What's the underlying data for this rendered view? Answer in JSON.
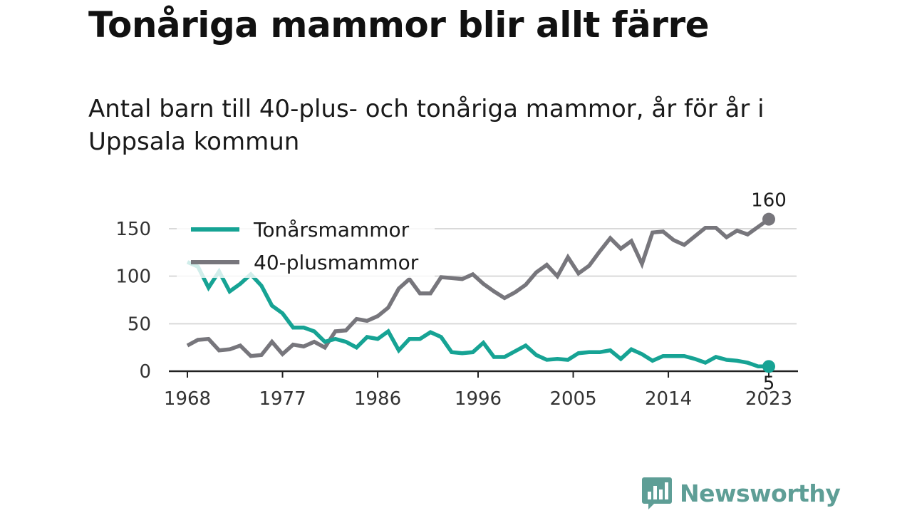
{
  "header": {
    "title": "Tonåriga mammor blir allt färre",
    "subtitle": "Antal barn till 40-plus- och tonåriga mammor, år för år i Uppsala kommun"
  },
  "brand": {
    "name": "Newsworthy",
    "icon": "bar-chart-chat-icon"
  },
  "colors": {
    "teen": "#16a394",
    "forty": "#77767c",
    "grid": "#d9d9d9",
    "axis": "#222222",
    "brand": "#5e9e96"
  },
  "chart_data": {
    "type": "line",
    "title": "",
    "xlabel": "",
    "ylabel": "",
    "x_ticks": [
      "1968",
      "1977",
      "1986",
      "1996",
      "2005",
      "2014",
      "2023"
    ],
    "y_ticks": [
      "0",
      "50",
      "100",
      "150"
    ],
    "xlim": [
      1968,
      2024
    ],
    "ylim": [
      0,
      160
    ],
    "grid": true,
    "legend_position": "top-left",
    "x": [
      1968,
      1969,
      1970,
      1971,
      1972,
      1973,
      1974,
      1975,
      1976,
      1977,
      1978,
      1979,
      1980,
      1981,
      1982,
      1983,
      1984,
      1985,
      1986,
      1987,
      1988,
      1989,
      1990,
      1991,
      1992,
      1993,
      1994,
      1995,
      1996,
      1997,
      1998,
      1999,
      2000,
      2001,
      2002,
      2003,
      2004,
      2005,
      2006,
      2007,
      2008,
      2009,
      2010,
      2011,
      2012,
      2013,
      2014,
      2015,
      2016,
      2017,
      2018,
      2019,
      2020,
      2021,
      2022,
      2023,
      2024
    ],
    "series": [
      {
        "name": "Tonårsmammor",
        "color": "#16a394",
        "values": [
          115,
          110,
          88,
          105,
          84,
          92,
          102,
          90,
          69,
          61,
          46,
          46,
          42,
          31,
          34,
          31,
          25,
          36,
          34,
          42,
          22,
          34,
          34,
          41,
          36,
          20,
          19,
          20,
          30,
          15,
          15,
          21,
          27,
          17,
          12,
          13,
          12,
          19,
          20,
          20,
          22,
          13,
          23,
          18,
          11,
          16,
          16,
          16,
          13,
          9,
          15,
          12,
          11,
          9,
          5,
          5,
          null
        ],
        "end_label": "5"
      },
      {
        "name": "40-plusmammor",
        "color": "#77767c",
        "values": [
          27,
          33,
          34,
          22,
          23,
          27,
          16,
          17,
          31,
          18,
          28,
          26,
          31,
          25,
          42,
          43,
          55,
          53,
          58,
          67,
          87,
          97,
          82,
          82,
          99,
          98,
          97,
          102,
          92,
          84,
          77,
          83,
          91,
          104,
          112,
          100,
          120,
          103,
          111,
          126,
          140,
          129,
          137,
          113,
          146,
          147,
          138,
          133,
          142,
          151,
          151,
          141,
          148,
          144,
          152,
          160,
          null
        ],
        "end_label": "160"
      }
    ]
  }
}
